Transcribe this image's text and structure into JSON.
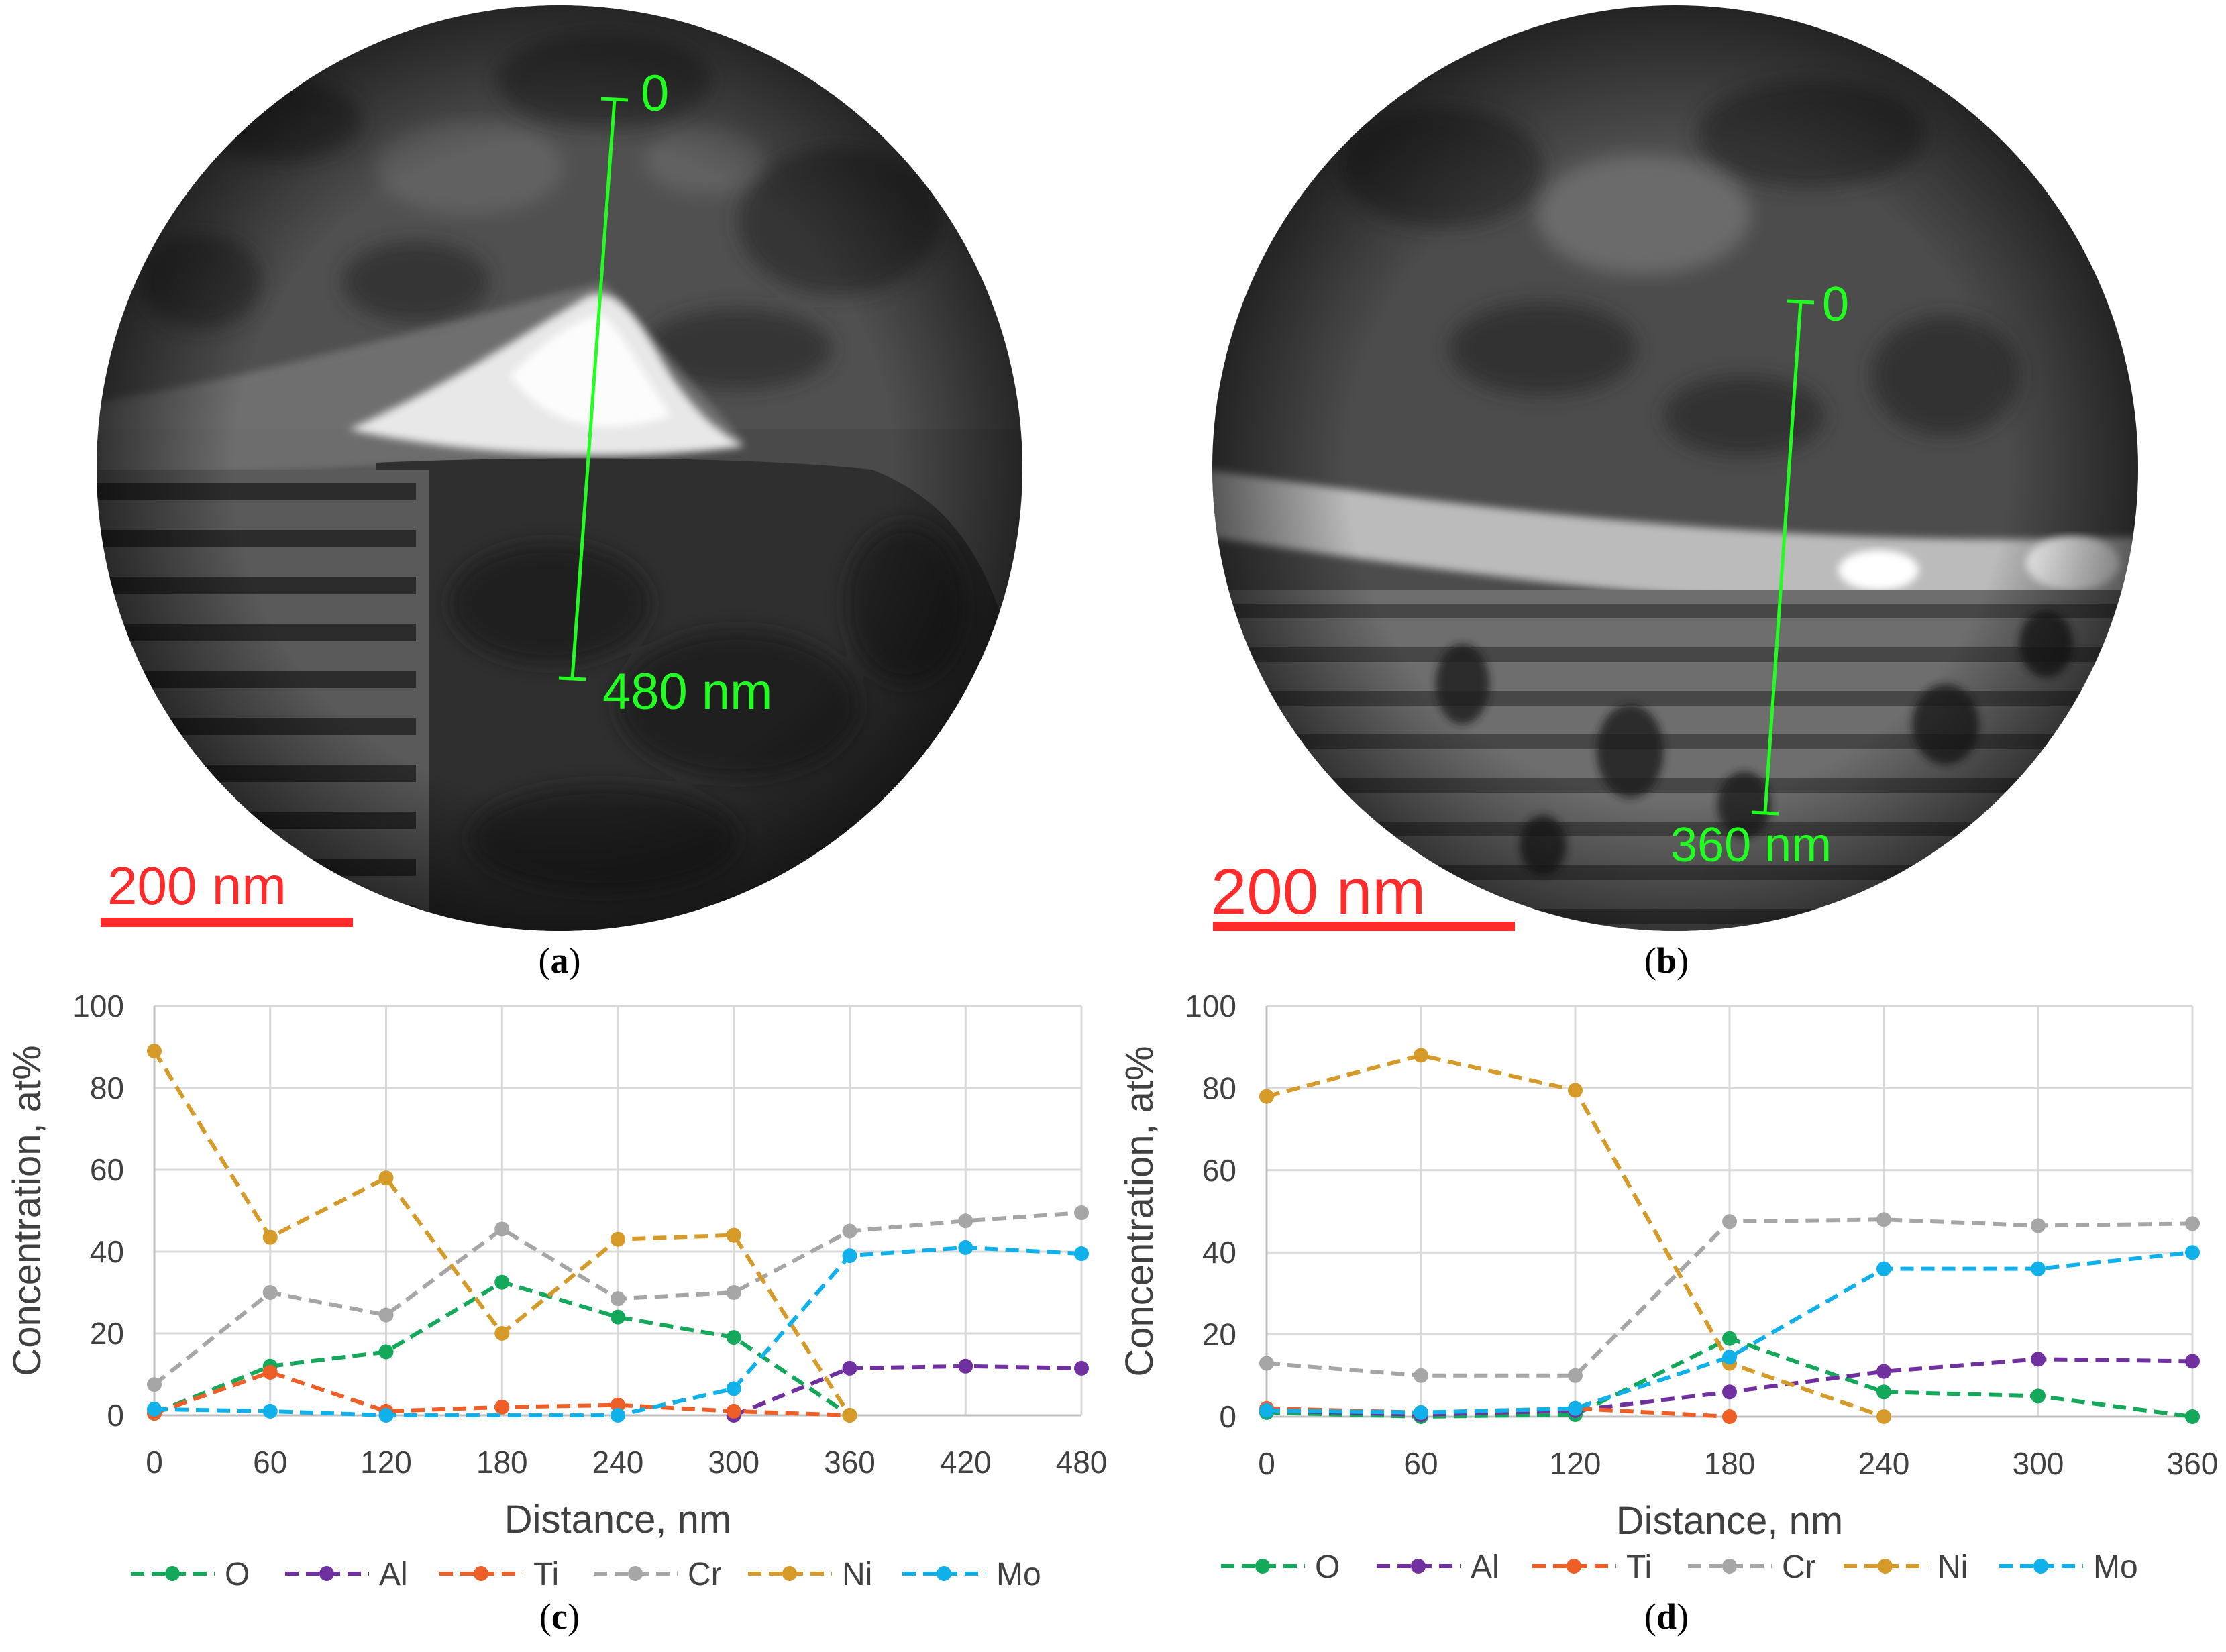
{
  "panels": {
    "a": {
      "label_open": "(",
      "label_letter": "a",
      "label_close": ")",
      "scale_bar": "200 nm",
      "line_start": "0",
      "line_end": "480 nm"
    },
    "b": {
      "label_open": "(",
      "label_letter": "b",
      "label_close": ")",
      "scale_bar": "200 nm",
      "line_start": "0",
      "line_end": "360 nm"
    },
    "c": {
      "label_open": "(",
      "label_letter": "c",
      "label_close": ")"
    },
    "d": {
      "label_open": "(",
      "label_letter": "d",
      "label_close": ")"
    }
  },
  "colors": {
    "O": "#14a85a",
    "Al": "#7030a0",
    "Ti": "#ed5f26",
    "Cr": "#a6a6a6",
    "Ni": "#d59a27",
    "Mo": "#10b0ea",
    "scale_bar": "#ff2b2b",
    "profile_line": "#20ff20"
  },
  "chart_data": [
    {
      "type": "line",
      "panel": "c",
      "xlabel": "Distance, nm",
      "ylabel": "Concentration, at%",
      "xlim": [
        0,
        480
      ],
      "ylim": [
        0,
        100
      ],
      "x_ticks": [
        0,
        60,
        120,
        180,
        240,
        300,
        360,
        420,
        480
      ],
      "y_ticks": [
        0,
        20,
        40,
        60,
        80,
        100
      ],
      "grid": true,
      "legend": "bottom",
      "series": [
        {
          "name": "O",
          "x": [
            0,
            60,
            120,
            180,
            240,
            300,
            360
          ],
          "values": [
            0.5,
            12,
            15.5,
            32.5,
            24,
            19,
            0
          ]
        },
        {
          "name": "Al",
          "x": [
            300,
            360,
            420,
            480
          ],
          "values": [
            0,
            11.5,
            12,
            11.5
          ]
        },
        {
          "name": "Ti",
          "x": [
            0,
            60,
            120,
            180,
            240,
            300,
            360
          ],
          "values": [
            0.5,
            10.5,
            1,
            2,
            2.5,
            1,
            0
          ]
        },
        {
          "name": "Cr",
          "x": [
            0,
            60,
            120,
            180,
            240,
            300,
            360,
            420,
            480
          ],
          "values": [
            7.5,
            30,
            24.5,
            45.5,
            28.5,
            30,
            45,
            47.5,
            49.5
          ]
        },
        {
          "name": "Ni",
          "x": [
            0,
            60,
            120,
            180,
            240,
            300,
            360
          ],
          "values": [
            89,
            43.5,
            58,
            20,
            43,
            44,
            0
          ]
        },
        {
          "name": "Mo",
          "x": [
            0,
            60,
            120,
            240,
            300,
            360,
            420,
            480
          ],
          "values": [
            1.5,
            1,
            0,
            0,
            6.5,
            39,
            41,
            39.5
          ]
        }
      ]
    },
    {
      "type": "line",
      "panel": "d",
      "xlabel": "Distance, nm",
      "ylabel": "Concentration, at%",
      "xlim": [
        0,
        360
      ],
      "ylim": [
        0,
        100
      ],
      "x_ticks": [
        0,
        60,
        120,
        180,
        240,
        300,
        360
      ],
      "y_ticks": [
        0,
        20,
        40,
        60,
        80,
        100
      ],
      "grid": true,
      "legend": "bottom",
      "series": [
        {
          "name": "O",
          "x": [
            0,
            60,
            120,
            180,
            240,
            300,
            360
          ],
          "values": [
            1,
            0,
            0.5,
            19,
            6,
            5,
            0
          ]
        },
        {
          "name": "Al",
          "x": [
            0,
            60,
            120,
            180,
            240,
            300,
            360
          ],
          "values": [
            1.5,
            0.5,
            1.5,
            6,
            11,
            14,
            13.5
          ]
        },
        {
          "name": "Ti",
          "x": [
            0,
            60,
            120,
            180
          ],
          "values": [
            2,
            1,
            2,
            0
          ]
        },
        {
          "name": "Cr",
          "x": [
            0,
            60,
            120,
            180,
            240,
            300,
            360
          ],
          "values": [
            13,
            10,
            10,
            47.5,
            48,
            46.5,
            47
          ]
        },
        {
          "name": "Ni",
          "x": [
            0,
            60,
            120,
            180,
            240
          ],
          "values": [
            78,
            88,
            79.5,
            13,
            0
          ]
        },
        {
          "name": "Mo",
          "x": [
            0,
            60,
            120,
            180,
            240,
            300,
            360
          ],
          "values": [
            1.5,
            1,
            2,
            14.5,
            36,
            36,
            40
          ]
        }
      ]
    }
  ]
}
